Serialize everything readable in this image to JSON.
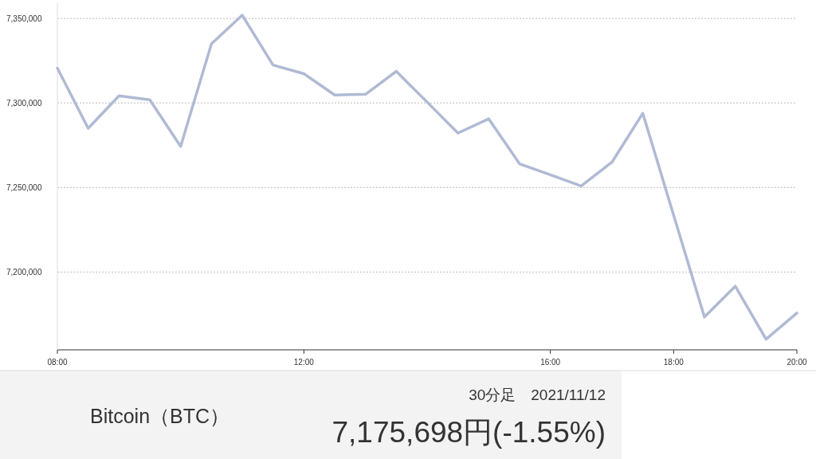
{
  "chart_data": {
    "type": "line",
    "x": [
      8,
      8.5,
      9,
      9.5,
      10,
      10.5,
      11,
      11.5,
      12,
      12.5,
      13,
      13.5,
      14,
      14.5,
      15,
      15.5,
      16,
      16.5,
      17,
      17.5,
      18,
      18.5,
      19,
      19.5,
      20
    ],
    "series": [
      {
        "color": "#b0bad4",
        "values": [
          7320600,
          7285000,
          7304200,
          7301900,
          7274300,
          7335000,
          7351900,
          7322400,
          7317300,
          7304700,
          7305100,
          7318700,
          7300500,
          7282200,
          7290600,
          7264000,
          7257500,
          7250900,
          7265000,
          7293900,
          7233600,
          7173400,
          7191600,
          7160300,
          7175700
        ]
      }
    ],
    "xlim": [
      8,
      20
    ],
    "xticks": [
      {
        "value": 8,
        "label": "08:00"
      },
      {
        "value": 12,
        "label": "12:00"
      },
      {
        "value": 16,
        "label": "16:00"
      },
      {
        "value": 18,
        "label": "18:00"
      },
      {
        "value": 20,
        "label": "20:00"
      }
    ],
    "ylim": [
      7154000,
      7359000
    ],
    "yticks": [
      {
        "value": 7200000,
        "label": "7,200,000"
      },
      {
        "value": 7250000,
        "label": "7,250,000"
      },
      {
        "value": 7300000,
        "label": "7,300,000"
      },
      {
        "value": 7350000,
        "label": "7,350,000"
      }
    ],
    "grid": "y",
    "marker": "none",
    "line_style": "solid",
    "annotations": [
      "Bitcoin（BTC）",
      "30分足　2021/11/12",
      "7,175,698円(-1.55%)"
    ]
  }
}
